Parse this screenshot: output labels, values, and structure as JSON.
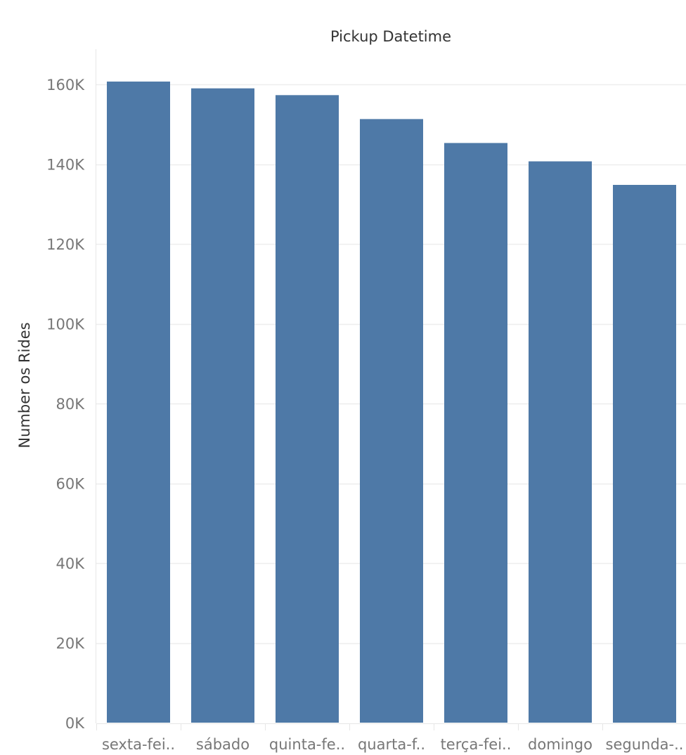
{
  "chart_data": {
    "type": "bar",
    "title": "Pickup Datetime",
    "xlabel": "",
    "ylabel": "Number os Rides",
    "categories": [
      "sexta-fei..",
      "sábado",
      "quinta-fe..",
      "quarta-f..",
      "terça-fei..",
      "domingo",
      "segunda-.."
    ],
    "values": [
      160700,
      159000,
      157300,
      151300,
      145300,
      140700,
      134800
    ],
    "ylim": [
      0,
      170000
    ],
    "yticks": [
      0,
      20000,
      40000,
      60000,
      80000,
      100000,
      120000,
      140000,
      160000
    ],
    "ytick_labels": [
      "0K",
      "20K",
      "40K",
      "60K",
      "80K",
      "100K",
      "120K",
      "140K",
      "160K"
    ],
    "grid": true,
    "legend": "none",
    "colors": {
      "bar": "#4e79a7",
      "grid": "#eeeeee",
      "axis": "#e6e6e6"
    }
  }
}
